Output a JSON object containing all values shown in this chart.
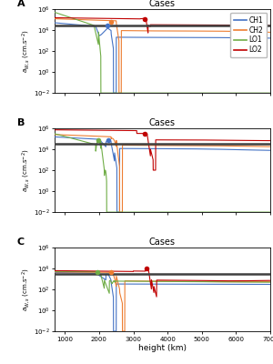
{
  "title": "Cases",
  "xlabel": "height (km)",
  "colors": {
    "CH1": "#4472C4",
    "CH2": "#ED7D31",
    "LO1": "#70AD47",
    "LO2": "#C00000"
  },
  "hline_color": "#404040",
  "hline_lw": 1.8,
  "panel_labels": [
    "A",
    "B",
    "C"
  ],
  "hlines": {
    "A": 30000.0,
    "B": 30000.0,
    "C": 3000.0
  },
  "ylim": [
    0.01,
    1000000.0
  ],
  "xlim": [
    700,
    7000
  ],
  "ylabel": "$a_{W,s}$ (cm.s$^{-2}$)",
  "legend_keys": [
    "CH1",
    "CH2",
    "LO1",
    "LO2"
  ]
}
